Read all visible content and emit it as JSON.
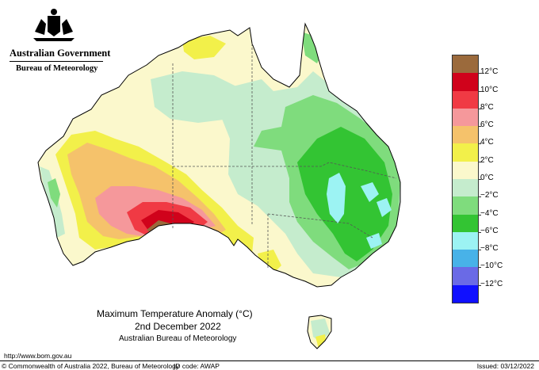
{
  "header": {
    "government": "Australian Government",
    "bureau": "Bureau of Meteorology"
  },
  "map": {
    "title": "Maximum Temperature Anomaly (°C)",
    "date": "2nd December 2022",
    "source": "Australian Bureau of Meteorology",
    "region": "Australia"
  },
  "legend": {
    "items": [
      {
        "label": "12°C",
        "color": "#9b6a3c"
      },
      {
        "label": "10°C",
        "color": "#d0021b"
      },
      {
        "label": "8°C",
        "color": "#f03a44"
      },
      {
        "label": "6°C",
        "color": "#f5989b"
      },
      {
        "label": "4°C",
        "color": "#f5c26b"
      },
      {
        "label": "2°C",
        "color": "#f2f04a"
      },
      {
        "label": "0°C",
        "color": "#fbf8cc"
      },
      {
        "label": "−2°C",
        "color": "#c5eccd"
      },
      {
        "label": "−4°C",
        "color": "#7fdc7d"
      },
      {
        "label": "−6°C",
        "color": "#33c433"
      },
      {
        "label": "−8°C",
        "color": "#9cf3f3"
      },
      {
        "label": "−10°C",
        "color": "#48b2e8"
      },
      {
        "label": "−12°C",
        "color": "#6a6ae6"
      },
      {
        "label": "",
        "color": "#1010ff"
      }
    ]
  },
  "footer": {
    "url": "http://www.bom.gov.au",
    "copyright": "© Commonwealth of Australia 2022, Bureau of Meteorology",
    "id_code": "ID code: AWAP",
    "issued": "Issued: 03/12/2022"
  }
}
